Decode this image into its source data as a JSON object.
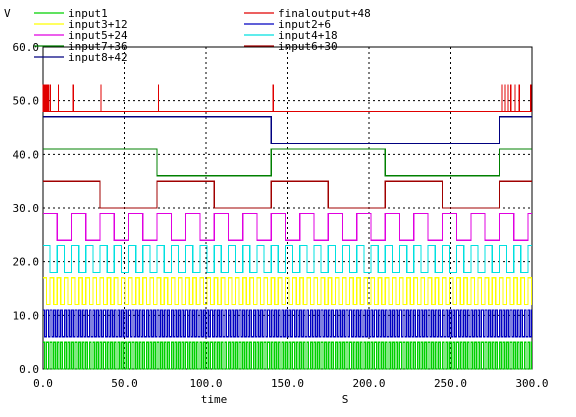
{
  "chart_data": {
    "type": "line",
    "title": "",
    "xlabel": "time",
    "xunit": "S",
    "ylabel": "V",
    "xlim": [
      0,
      300
    ],
    "ylim": [
      0,
      60
    ],
    "xticks": [
      "0.0",
      "50.0",
      "100.0",
      "150.0",
      "200.0",
      "250.0",
      "300.0"
    ],
    "yticks": [
      "0.0",
      "10.0",
      "20.0",
      "30.0",
      "40.0",
      "50.0",
      "60.0"
    ],
    "grid": true,
    "legend_position": "top",
    "series": [
      {
        "name": "input1",
        "color": "#00d000",
        "kind": "square",
        "offset": 0,
        "amplitude": 5,
        "period": 2.1875,
        "start_high": true
      },
      {
        "name": "finaloutput+48",
        "color": "#e00000",
        "kind": "spikes",
        "base": 48,
        "amplitude": 5,
        "spikes": [
          0.5,
          1.2,
          1.8,
          2.6,
          3.3,
          4.4,
          9.5,
          18.5,
          35.5,
          70.8,
          141.2,
          281.5,
          283.5,
          285.3,
          287.0,
          289.6,
          292.2,
          299.2
        ]
      },
      {
        "name": "input3+12",
        "color": "#ffff00",
        "kind": "square",
        "offset": 12,
        "amplitude": 5,
        "period": 4.375,
        "start_high": true
      },
      {
        "name": "input2+6",
        "color": "#0000c0",
        "kind": "square",
        "offset": 6,
        "amplitude": 5,
        "period": 2.1875,
        "start_high": true
      },
      {
        "name": "input5+24",
        "color": "#e000e0",
        "kind": "square",
        "offset": 24,
        "amplitude": 5,
        "period": 17.5,
        "start_high": true
      },
      {
        "name": "input4+18",
        "color": "#00e0e0",
        "kind": "square",
        "offset": 18,
        "amplitude": 5,
        "period": 8.75,
        "start_high": true
      },
      {
        "name": "input7+36",
        "color": "#008000",
        "kind": "square",
        "offset": 36,
        "amplitude": 5,
        "period": 140,
        "start_high": true
      },
      {
        "name": "input6+30",
        "color": "#a00000",
        "kind": "square",
        "offset": 30,
        "amplitude": 5,
        "period": 70,
        "start_high": true
      },
      {
        "name": "input8+42",
        "color": "#000080",
        "kind": "square",
        "offset": 42,
        "amplitude": 5,
        "period": 280,
        "start_high": true
      }
    ]
  }
}
